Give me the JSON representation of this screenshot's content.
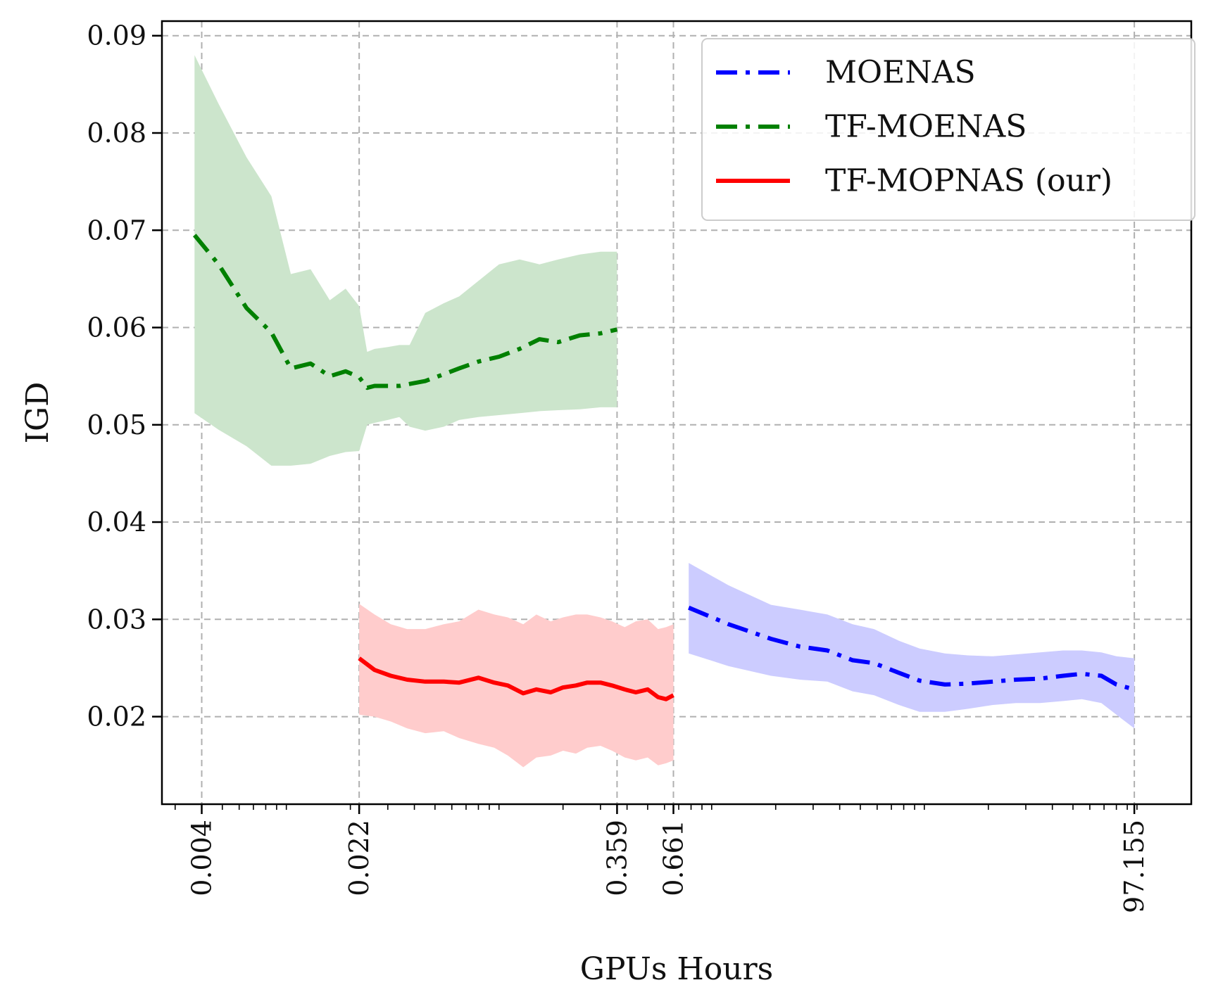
{
  "chart_data": {
    "type": "line",
    "xlabel": "GPUs Hours",
    "ylabel": "IGD",
    "x_scale": "log",
    "xlim": [
      0.0026,
      180
    ],
    "ylim": [
      0.011,
      0.0915
    ],
    "grid": true,
    "legend_position": "top-right",
    "x_ticks": [
      {
        "value": 0.004,
        "label": "0.004"
      },
      {
        "value": 0.022,
        "label": "0.022"
      },
      {
        "value": 0.359,
        "label": "0.359"
      },
      {
        "value": 0.661,
        "label": "0.661"
      },
      {
        "value": 97.155,
        "label": "97.155"
      }
    ],
    "y_ticks": [
      {
        "value": 0.02,
        "label": "0.02"
      },
      {
        "value": 0.03,
        "label": "0.03"
      },
      {
        "value": 0.04,
        "label": "0.04"
      },
      {
        "value": 0.05,
        "label": "0.05"
      },
      {
        "value": 0.06,
        "label": "0.06"
      },
      {
        "value": 0.07,
        "label": "0.07"
      },
      {
        "value": 0.08,
        "label": "0.08"
      },
      {
        "value": 0.09,
        "label": "0.09"
      }
    ],
    "series": [
      {
        "name": "MOENAS",
        "color": "#0000ff",
        "band_color": "#ccccff",
        "dash": "dashdot",
        "x": [
          0.78,
          1.2,
          1.9,
          2.6,
          3.5,
          4.6,
          5.8,
          7.6,
          9.5,
          12.5,
          16,
          21,
          27,
          35,
          45,
          55,
          68,
          80,
          97.155
        ],
        "y": [
          0.0312,
          0.0295,
          0.028,
          0.0272,
          0.0268,
          0.0258,
          0.0255,
          0.0245,
          0.0237,
          0.0233,
          0.0234,
          0.0236,
          0.0238,
          0.0239,
          0.0242,
          0.0244,
          0.0242,
          0.0233,
          0.0228
        ],
        "upper": [
          0.0358,
          0.0335,
          0.0315,
          0.031,
          0.0305,
          0.0295,
          0.029,
          0.0278,
          0.027,
          0.0265,
          0.0263,
          0.0262,
          0.0264,
          0.0266,
          0.0268,
          0.0268,
          0.0266,
          0.0262,
          0.026
        ],
        "lower": [
          0.0265,
          0.0252,
          0.0242,
          0.0238,
          0.0236,
          0.0226,
          0.0222,
          0.0212,
          0.0205,
          0.0205,
          0.0208,
          0.0212,
          0.0214,
          0.0214,
          0.0216,
          0.0218,
          0.0214,
          0.0202,
          0.0188
        ]
      },
      {
        "name": "TF-MOENAS",
        "color": "#008000",
        "band_color": "#cce5cc",
        "dash": "dashdot",
        "x": [
          0.0037,
          0.0048,
          0.0065,
          0.0085,
          0.0105,
          0.013,
          0.016,
          0.019,
          0.022,
          0.024,
          0.026,
          0.03,
          0.034,
          0.038,
          0.045,
          0.055,
          0.065,
          0.08,
          0.1,
          0.125,
          0.155,
          0.19,
          0.24,
          0.3,
          0.359
        ],
        "y": [
          0.0695,
          0.0665,
          0.062,
          0.0595,
          0.0558,
          0.0563,
          0.055,
          0.0555,
          0.0549,
          0.0538,
          0.054,
          0.054,
          0.054,
          0.0542,
          0.0545,
          0.0552,
          0.0558,
          0.0565,
          0.057,
          0.0578,
          0.0588,
          0.0585,
          0.0592,
          0.0594,
          0.0598
        ],
        "upper": [
          0.088,
          0.083,
          0.0775,
          0.0735,
          0.0655,
          0.066,
          0.0628,
          0.064,
          0.0622,
          0.0575,
          0.0578,
          0.058,
          0.0582,
          0.0582,
          0.0615,
          0.0625,
          0.0632,
          0.0648,
          0.0665,
          0.067,
          0.0665,
          0.067,
          0.0675,
          0.0678,
          0.0678
        ],
        "lower": [
          0.0512,
          0.0495,
          0.0478,
          0.0458,
          0.0458,
          0.046,
          0.0468,
          0.0472,
          0.0473,
          0.05,
          0.0502,
          0.0505,
          0.0508,
          0.0498,
          0.0494,
          0.0498,
          0.0505,
          0.0508,
          0.051,
          0.0512,
          0.0514,
          0.0515,
          0.0516,
          0.0518,
          0.0518
        ]
      },
      {
        "name": "TF-MOPNAS (our)",
        "color": "#ff0000",
        "band_color": "#ffcccc",
        "dash": "solid",
        "x": [
          0.022,
          0.026,
          0.031,
          0.037,
          0.045,
          0.055,
          0.065,
          0.08,
          0.095,
          0.11,
          0.13,
          0.15,
          0.175,
          0.2,
          0.23,
          0.26,
          0.3,
          0.34,
          0.39,
          0.44,
          0.5,
          0.56,
          0.61,
          0.661
        ],
        "y": [
          0.026,
          0.0248,
          0.0242,
          0.0238,
          0.0236,
          0.0236,
          0.0235,
          0.024,
          0.0235,
          0.0232,
          0.0224,
          0.0228,
          0.0225,
          0.023,
          0.0232,
          0.0235,
          0.0235,
          0.0232,
          0.0228,
          0.0225,
          0.0228,
          0.022,
          0.0218,
          0.0222
        ],
        "upper": [
          0.0316,
          0.0305,
          0.0295,
          0.029,
          0.029,
          0.0295,
          0.0298,
          0.031,
          0.0305,
          0.0302,
          0.0295,
          0.0305,
          0.0298,
          0.0302,
          0.0305,
          0.0305,
          0.0302,
          0.0298,
          0.0292,
          0.0298,
          0.03,
          0.029,
          0.0292,
          0.0295
        ],
        "lower": [
          0.0202,
          0.02,
          0.0195,
          0.0188,
          0.0183,
          0.0185,
          0.0178,
          0.0172,
          0.0168,
          0.016,
          0.0148,
          0.0158,
          0.016,
          0.0165,
          0.0162,
          0.0168,
          0.017,
          0.0165,
          0.0158,
          0.0155,
          0.0158,
          0.015,
          0.0152,
          0.0155
        ]
      }
    ]
  }
}
